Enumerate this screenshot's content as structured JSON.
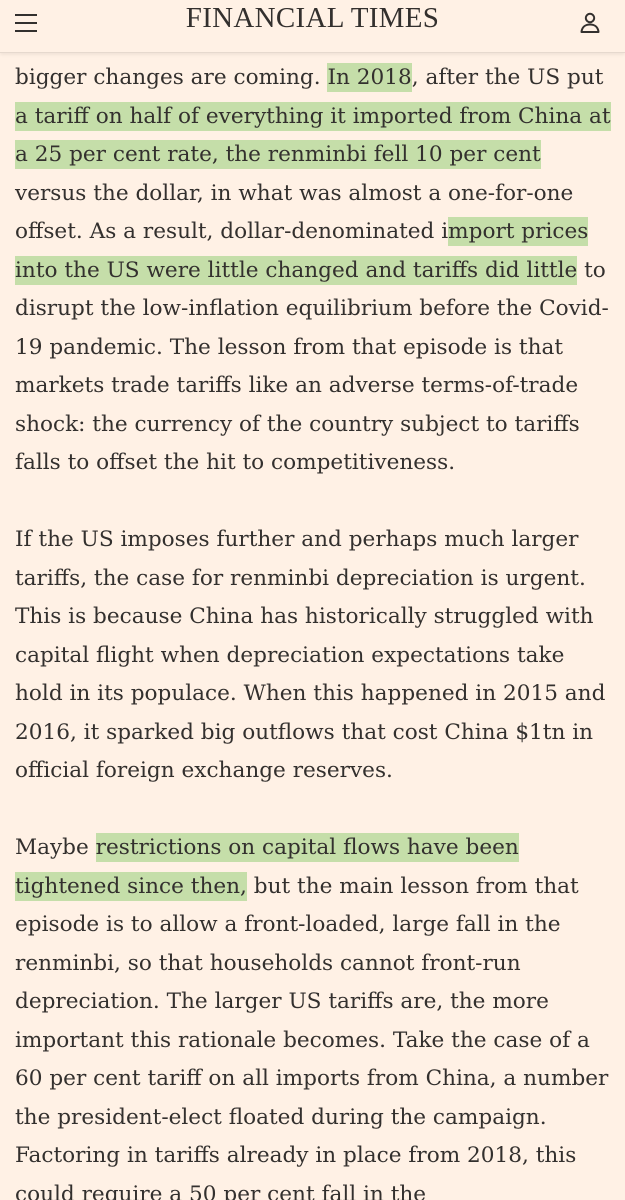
{
  "header": {
    "logo": "FINANCIAL TIMES",
    "menu_icon": "hamburger-menu-icon",
    "account_icon": "user-account-icon"
  },
  "colors": {
    "background": "#fff1e5",
    "text": "#33302e",
    "highlight": "#96cd78"
  },
  "article": {
    "p1": {
      "t1": "bigger changes are coming. ",
      "h1": "In 2018",
      "t2": ", after the US put ",
      "h2": "a tariff on half of everything it imported from China at a 25 per cent rate, the renminbi fell 10 per cent",
      "t3": " versus the dollar, in what was almost a one-for-one offset. As a result, dollar-denominated i",
      "h3": "mport prices into the US were little changed and tariffs did little",
      "t4": " to disrupt the low-inflation equilibrium before the Covid-19 pandemic. The lesson from that episode is that markets trade tariffs like an adverse terms-of-trade shock: the currency of the country subject to tariffs falls to offset the hit to competitiveness."
    },
    "p2": "If the US imposes further and perhaps much larger tariffs, the case for renminbi depreciation is urgent. This is because China has historically struggled with capital flight when depreciation expectations take hold in its populace. When this happened in 2015 and 2016, it sparked big outflows that cost China $1tn in official foreign exchange reserves.",
    "p3": {
      "t1": "Maybe ",
      "h1": "restrictions on capital flows have been tightened since then,",
      "t2": " but the main lesson from that episode is to allow a front-loaded, large fall in the renminbi, so that households cannot front-run depreciation. The larger US tariffs are, the more important this rationale becomes. Take the case of a 60 per cent tariff on all imports from China, a number the president-elect floated during the campaign. Factoring in tariffs already in place from 2018, this could require a 50 per cent fall in the"
    }
  }
}
